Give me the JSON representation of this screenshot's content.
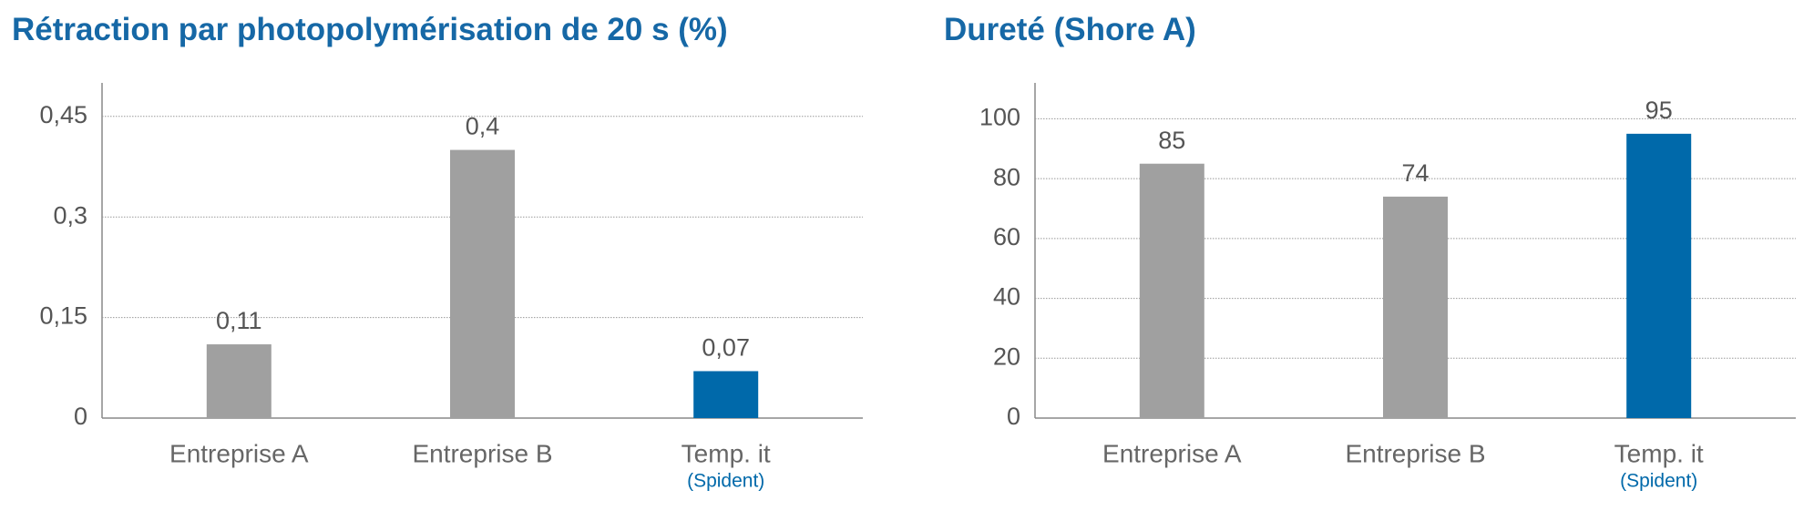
{
  "chart_data": [
    {
      "type": "bar",
      "title": "Rétraction par photopolymérisation de 20 s (%)",
      "categories": [
        "Entreprise A",
        "Entreprise B",
        "Temp. it"
      ],
      "category_sublabels": [
        null,
        null,
        "(Spident)"
      ],
      "values": [
        0.11,
        0.4,
        0.07
      ],
      "value_labels": [
        "0,11",
        "0,4",
        "0,07"
      ],
      "colors": [
        "#a0a0a0",
        "#a0a0a0",
        "#0069aa"
      ],
      "ylim": [
        0,
        0.5
      ],
      "yticks": [
        0,
        {
          "value": 0.15,
          "label": "0,15"
        },
        {
          "value": 0.3,
          "label": "0,3"
        },
        {
          "value": 0.45,
          "label": "0,45"
        }
      ],
      "grid": true
    },
    {
      "type": "bar",
      "title": "Dureté (Shore A)",
      "categories": [
        "Entreprise A",
        "Entreprise B",
        "Temp. it"
      ],
      "category_sublabels": [
        null,
        null,
        "(Spident)"
      ],
      "values": [
        85,
        74,
        95
      ],
      "colors": [
        "#a0a0a0",
        "#a0a0a0",
        "#0069aa"
      ],
      "ylim": [
        0,
        112
      ],
      "yticks": [
        0,
        20,
        40,
        60,
        80,
        100
      ],
      "grid": true
    }
  ]
}
